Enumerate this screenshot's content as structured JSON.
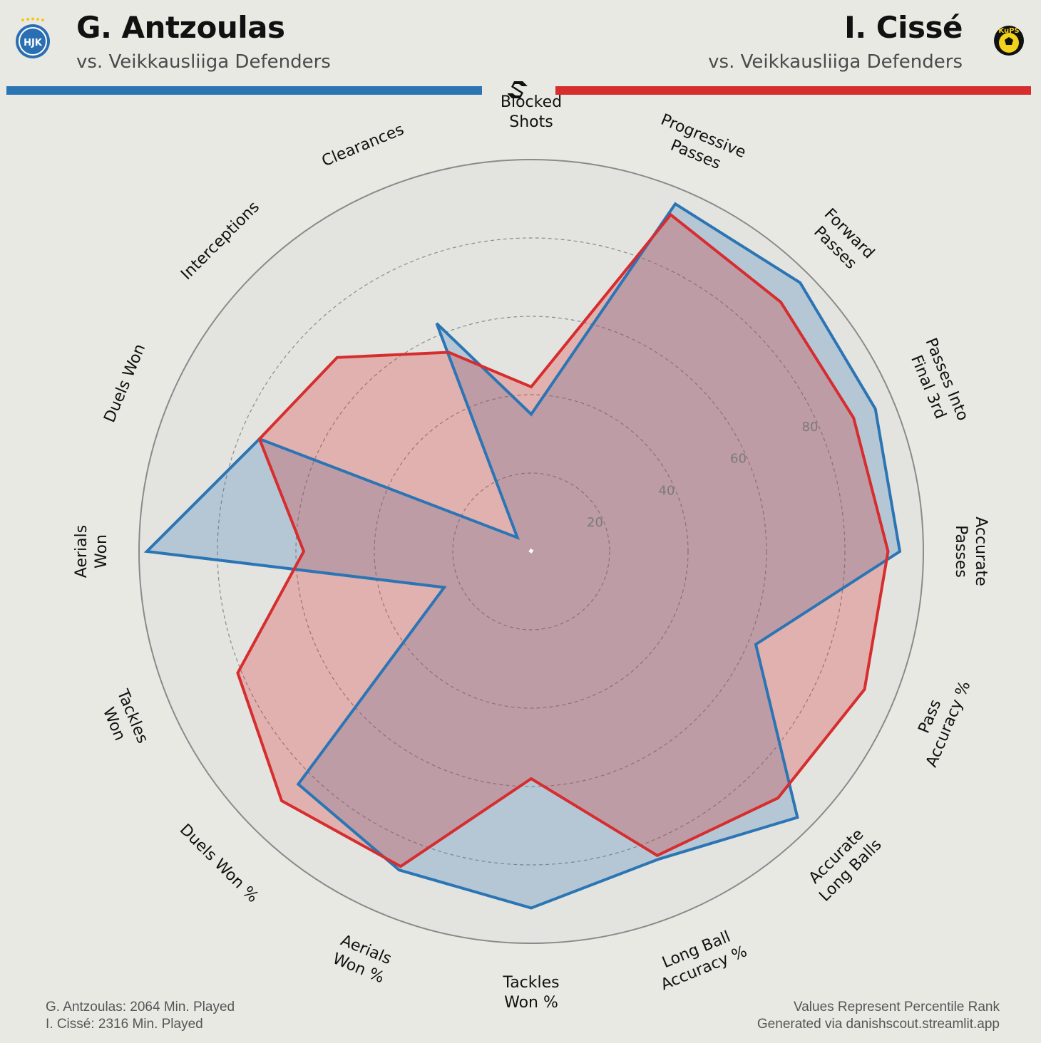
{
  "header": {
    "player1": {
      "name": "G. Antzoulas",
      "subtitle": "vs. Veikkausliiga Defenders",
      "color": "#2b75b5",
      "crest_text": "HJK"
    },
    "player2": {
      "name": "I. Cissé",
      "subtitle": "vs. Veikkausliiga Defenders",
      "color": "#d62d2f",
      "crest_text": "KuPS"
    }
  },
  "footer": {
    "minutes_p1": "G. Antzoulas: 2064 Min. Played",
    "minutes_p2": "I. Cissé: 2316 Min. Played",
    "note": "Values Represent Percentile Rank",
    "source": "Generated via danishscout.streamlit.app"
  },
  "chart_data": {
    "type": "radar",
    "range": [
      0,
      100
    ],
    "grid_values": [
      20,
      40,
      60,
      80
    ],
    "tick_labels": [
      "20",
      "40",
      "60",
      "80"
    ],
    "categories": [
      "Blocked\nShots",
      "Progressive\nPasses",
      "Forward\nPasses",
      "Passes Into\nFinal 3rd",
      "Accurate\nPasses",
      "Pass\nAccuracy %",
      "Accurate\nLong Balls",
      "Long Ball\nAccuracy %",
      "Tackles\nWon %",
      "Aerials\nWon %",
      "Duels Won %",
      "Tackles\nWon",
      "Aerials\nWon",
      "Duels Won",
      "Interceptions",
      "Clearances"
    ],
    "series": [
      {
        "name": "G. Antzoulas",
        "color": "#2b75b5",
        "fill": "rgba(43,117,181,0.25)",
        "values": [
          35,
          96,
          97,
          95,
          94,
          62,
          96,
          85,
          91,
          88,
          84,
          24,
          98,
          75,
          5,
          63
        ]
      },
      {
        "name": "I. Cissé",
        "color": "#d62d2f",
        "fill": "rgba(214,45,47,0.28)",
        "values": [
          42,
          93,
          90,
          89,
          91,
          92,
          89,
          84,
          58,
          87,
          90,
          81,
          58,
          75,
          70,
          55
        ]
      }
    ]
  }
}
